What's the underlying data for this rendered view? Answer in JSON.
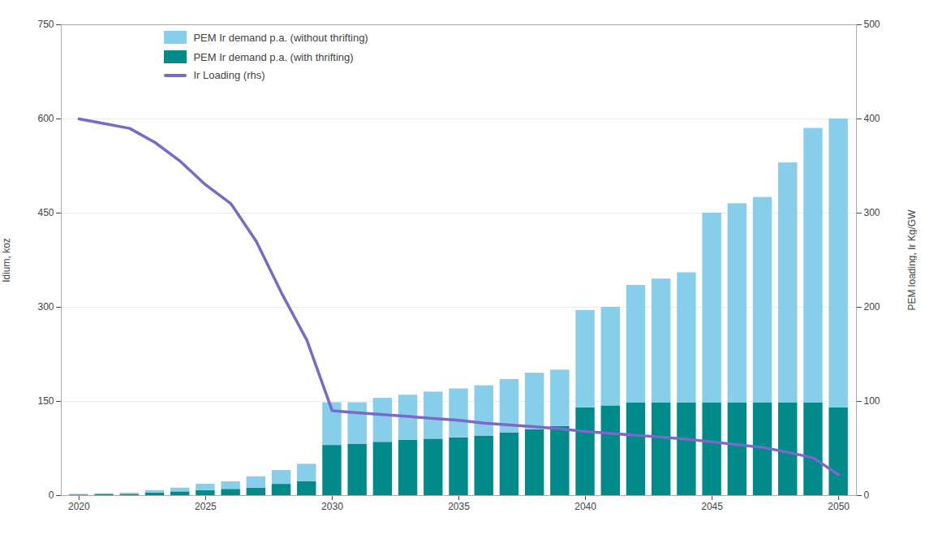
{
  "chart_data": {
    "type": "bar",
    "stacked": true,
    "grid": true,
    "legend": "upper left",
    "x": [
      2020,
      2021,
      2022,
      2023,
      2024,
      2025,
      2026,
      2027,
      2028,
      2029,
      2030,
      2031,
      2032,
      2033,
      2034,
      2035,
      2036,
      2037,
      2038,
      2039,
      2040,
      2041,
      2042,
      2043,
      2044,
      2045,
      2046,
      2047,
      2048,
      2049,
      2050
    ],
    "xlim": [
      2019.3,
      2050.7
    ],
    "xticks": [
      2020,
      2025,
      2030,
      2035,
      2040,
      2045,
      2050
    ],
    "ylabel": "Idium, koz",
    "ylim": [
      0,
      750
    ],
    "yticks": [
      0,
      150,
      300,
      450,
      600,
      750
    ],
    "y2label": "PEM loading, Ir Kg/GW",
    "y2lim": [
      0,
      500
    ],
    "y2ticks": [
      0,
      100,
      200,
      300,
      400,
      500
    ],
    "series": [
      {
        "name": "PEM Ir demand p.a. (with thrifting)",
        "color": "#008b8b",
        "values": [
          1,
          2,
          2,
          4,
          6,
          8,
          10,
          12,
          18,
          22,
          80,
          82,
          85,
          88,
          90,
          92,
          95,
          100,
          105,
          110,
          140,
          143,
          148,
          148,
          148,
          148,
          148,
          148,
          148,
          148,
          140
        ]
      },
      {
        "name": "PEM Ir demand p.a. (without thrifting)",
        "color": "#87ceeb",
        "values": [
          1,
          1,
          2,
          4,
          6,
          10,
          12,
          18,
          22,
          28,
          68,
          66,
          70,
          72,
          75,
          78,
          80,
          85,
          90,
          90,
          155,
          157,
          187,
          197,
          207,
          302,
          317,
          327,
          382,
          437,
          460
        ]
      },
      {
        "name": "Ir Loading (rhs)",
        "type": "line",
        "axis": "y2",
        "color": "#7b68c8",
        "values": [
          400,
          395,
          390,
          375,
          355,
          330,
          310,
          270,
          215,
          165,
          90,
          88,
          86,
          84,
          82,
          80,
          77,
          75,
          73,
          71,
          68,
          66,
          64,
          62,
          60,
          57,
          54,
          51,
          46,
          40,
          22
        ]
      }
    ]
  }
}
